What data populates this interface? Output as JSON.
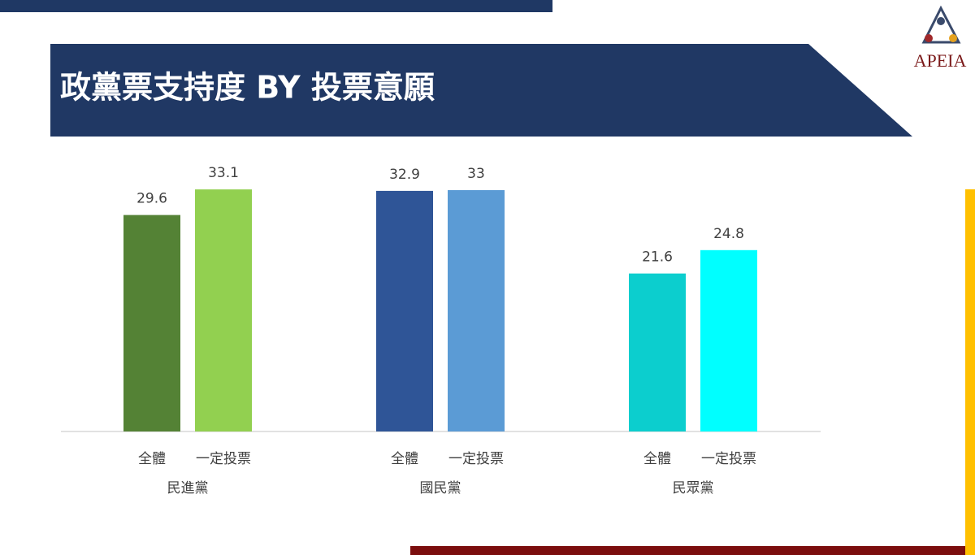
{
  "logo": {
    "text": "APEIA"
  },
  "chart_data": {
    "type": "bar",
    "title": "政黨票支持度 BY 投票意願",
    "categories": [
      "民進黨",
      "國民黨",
      "民眾黨"
    ],
    "series": [
      {
        "name": "全體",
        "values": [
          29.6,
          32.9,
          21.6
        ],
        "colors": [
          "#548235",
          "#2f5597",
          "#0ccece"
        ]
      },
      {
        "name": "一定投票",
        "values": [
          33.1,
          33.0,
          24.8
        ],
        "colors": [
          "#92d050",
          "#5b9bd5",
          "#00ffff"
        ]
      }
    ],
    "ylim": [
      0,
      35
    ],
    "grid": false
  }
}
